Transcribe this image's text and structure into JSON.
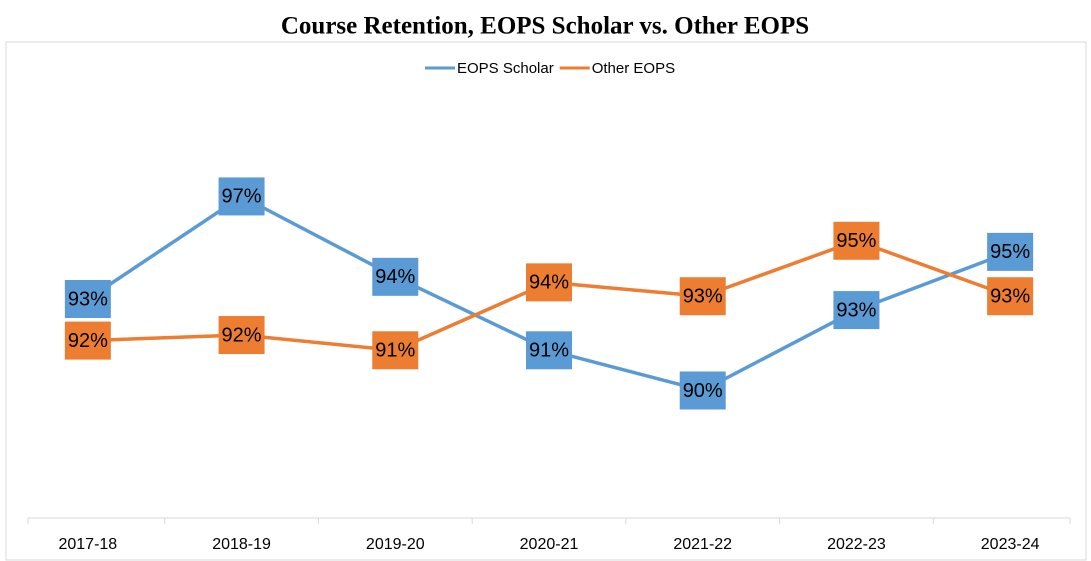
{
  "chart_data": {
    "type": "line",
    "title": "Course Retention, EOPS Scholar vs. Other EOPS",
    "categories": [
      "2017-18",
      "2018-19",
      "2019-20",
      "2020-21",
      "2021-22",
      "2022-23",
      "2023-24"
    ],
    "series": [
      {
        "name": "EOPS Scholar",
        "color": "#5b9bd5",
        "values": [
          93.3,
          97.0,
          94.1,
          91.45,
          90.0,
          92.9,
          95.0
        ],
        "value_labels": [
          "93%",
          "97%",
          "94%",
          "91%",
          "90%",
          "93%",
          "95%"
        ]
      },
      {
        "name": "Other EOPS",
        "color": "#ed7d31",
        "values": [
          91.8,
          92.0,
          91.45,
          93.9,
          93.4,
          95.4,
          93.4
        ],
        "value_labels": [
          "92%",
          "92%",
          "91%",
          "94%",
          "93%",
          "95%",
          "93%"
        ]
      }
    ],
    "ylim": [
      85.4,
      101.2
    ],
    "legend": "top"
  }
}
